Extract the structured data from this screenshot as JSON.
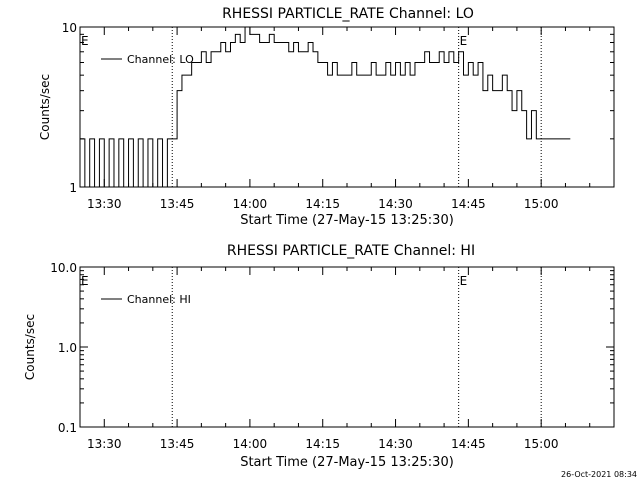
{
  "footer_stamp": "26-Oct-2021 08:34",
  "chart_data": [
    {
      "type": "line",
      "title": "RHESSI PARTICLE_RATE Channel: LO",
      "xlabel": "Start Time (27-May-15 13:25:30)",
      "ylabel": "Counts/sec",
      "yscale": "log",
      "ylim": [
        1,
        10
      ],
      "xlim_minutes_after_1325": [
        0,
        110
      ],
      "y_tick_labels": [
        "1",
        "10"
      ],
      "x_tick_labels": [
        "13:30",
        "13:45",
        "14:00",
        "14:15",
        "14:30",
        "14:45",
        "15:00"
      ],
      "vlines": [
        "13:44",
        "14:43",
        "15:00"
      ],
      "event_markers": [
        {
          "label": "E",
          "at": "13:25"
        },
        {
          "label": "E",
          "at": "14:43"
        }
      ],
      "legend": {
        "placement": "top-left",
        "entries": [
          "Channel: LO"
        ]
      },
      "grid": false,
      "series": [
        {
          "name": "Channel: LO",
          "color": "#000000",
          "x": [
            "13:25",
            "13:26",
            "13:27",
            "13:28",
            "13:29",
            "13:30",
            "13:31",
            "13:32",
            "13:33",
            "13:34",
            "13:35",
            "13:36",
            "13:37",
            "13:38",
            "13:39",
            "13:40",
            "13:41",
            "13:42",
            "13:43",
            "13:44",
            "13:45",
            "13:46",
            "13:47",
            "13:48",
            "13:49",
            "13:50",
            "13:51",
            "13:52",
            "13:53",
            "13:54",
            "13:55",
            "13:56",
            "13:57",
            "13:58",
            "13:59",
            "14:00",
            "14:01",
            "14:02",
            "14:03",
            "14:04",
            "14:05",
            "14:06",
            "14:07",
            "14:08",
            "14:09",
            "14:10",
            "14:11",
            "14:12",
            "14:13",
            "14:14",
            "14:15",
            "14:16",
            "14:17",
            "14:18",
            "14:19",
            "14:20",
            "14:21",
            "14:22",
            "14:23",
            "14:24",
            "14:25",
            "14:26",
            "14:27",
            "14:28",
            "14:29",
            "14:30",
            "14:31",
            "14:32",
            "14:33",
            "14:34",
            "14:35",
            "14:36",
            "14:37",
            "14:38",
            "14:39",
            "14:40",
            "14:41",
            "14:42",
            "14:43",
            "14:44",
            "14:45",
            "14:46",
            "14:47",
            "14:48",
            "14:49",
            "14:50",
            "14:51",
            "14:52",
            "14:53",
            "14:54",
            "14:55",
            "14:56",
            "14:57",
            "14:58",
            "14:59",
            "15:00",
            "15:01",
            "15:02",
            "15:03",
            "15:04",
            "15:05"
          ],
          "y": [
            2,
            1,
            2,
            1,
            2,
            1,
            2,
            1,
            2,
            1,
            2,
            1,
            2,
            1,
            2,
            1,
            2,
            1,
            2,
            2,
            4,
            5,
            5,
            6,
            6,
            7,
            6,
            7,
            7,
            8,
            7,
            8,
            9,
            8,
            10,
            9,
            9,
            8,
            8,
            9,
            8,
            8,
            8,
            7,
            8,
            7,
            7,
            8,
            7,
            6,
            6,
            5,
            6,
            5,
            5,
            5,
            6,
            5,
            5,
            5,
            6,
            5,
            5,
            6,
            5,
            6,
            5,
            6,
            5,
            6,
            6,
            7,
            6,
            6,
            7,
            6,
            7,
            6,
            7,
            5,
            6,
            5,
            6,
            4,
            5,
            4,
            4,
            5,
            4,
            3,
            4,
            3,
            2,
            3,
            2,
            2,
            2,
            2,
            2,
            2,
            2
          ]
        }
      ]
    },
    {
      "type": "line",
      "title": "RHESSI PARTICLE_RATE Channel: HI",
      "xlabel": "Start Time (27-May-15 13:25:30)",
      "ylabel": "Counts/sec",
      "yscale": "log",
      "ylim": [
        0.1,
        10.0
      ],
      "xlim_minutes_after_1325": [
        0,
        110
      ],
      "y_tick_labels": [
        "0.1",
        "1.0",
        "10.0"
      ],
      "x_tick_labels": [
        "13:30",
        "13:45",
        "14:00",
        "14:15",
        "14:30",
        "14:45",
        "15:00"
      ],
      "vlines": [
        "13:44",
        "14:43",
        "15:00"
      ],
      "event_markers": [
        {
          "label": "E",
          "at": "13:25"
        },
        {
          "label": "E",
          "at": "14:43"
        }
      ],
      "legend": {
        "placement": "top-left",
        "entries": [
          "Channel: HI"
        ]
      },
      "grid": false,
      "series": [
        {
          "name": "Channel: HI",
          "color": "#000000",
          "x": [],
          "y": []
        }
      ]
    }
  ]
}
